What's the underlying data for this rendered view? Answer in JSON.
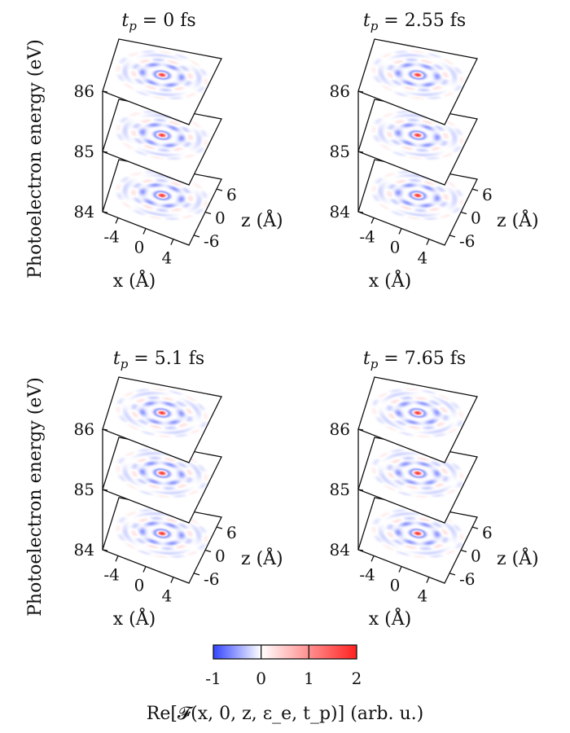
{
  "chart_data": [
    {
      "type": "heatmap",
      "title_var": "t",
      "title_sub": "p",
      "title_value": "= 0 fs",
      "zlabel": "Photoelectron energy (eV)",
      "xlabel": "x (Å)",
      "ylabel": "z (Å)",
      "energy_ticks": [
        "84",
        "85",
        "86"
      ],
      "energy_values": [
        84,
        85,
        86
      ],
      "x_ticks": [
        "-4",
        "0",
        "4"
      ],
      "z_ticks": [
        "-6",
        "0",
        "6"
      ]
    },
    {
      "type": "heatmap",
      "title_var": "t",
      "title_sub": "p",
      "title_value": "= 2.55 fs",
      "zlabel": "",
      "xlabel": "x (Å)",
      "ylabel": "z (Å)",
      "energy_ticks": [
        "84",
        "85",
        "86"
      ],
      "energy_values": [
        84,
        85,
        86
      ],
      "x_ticks": [
        "-4",
        "0",
        "4"
      ],
      "z_ticks": [
        "-6",
        "0",
        "6"
      ]
    },
    {
      "type": "heatmap",
      "title_var": "t",
      "title_sub": "p",
      "title_value": "= 5.1 fs",
      "zlabel": "Photoelectron energy (eV)",
      "xlabel": "x (Å)",
      "ylabel": "z (Å)",
      "energy_ticks": [
        "84",
        "85",
        "86"
      ],
      "energy_values": [
        84,
        85,
        86
      ],
      "x_ticks": [
        "-4",
        "0",
        "4"
      ],
      "z_ticks": [
        "-6",
        "0",
        "6"
      ]
    },
    {
      "type": "heatmap",
      "title_var": "t",
      "title_sub": "p",
      "title_value": "= 7.65 fs",
      "zlabel": "",
      "xlabel": "x (Å)",
      "ylabel": "z (Å)",
      "energy_ticks": [
        "84",
        "85",
        "86"
      ],
      "energy_values": [
        84,
        85,
        86
      ],
      "x_ticks": [
        "-4",
        "0",
        "4"
      ],
      "z_ticks": [
        "-6",
        "0",
        "6"
      ]
    }
  ],
  "colorbar": {
    "ticks": [
      "-1",
      "0",
      "1",
      "2"
    ],
    "values": [
      -1,
      0,
      1,
      2
    ],
    "range": [
      -1,
      2
    ],
    "low_color": "#3344ff",
    "mid_color": "#ffffff",
    "high_color": "#ff2020",
    "label": "Re[𝓕(x, 0, z, ε_e, t_p)] (arb. u.)"
  }
}
